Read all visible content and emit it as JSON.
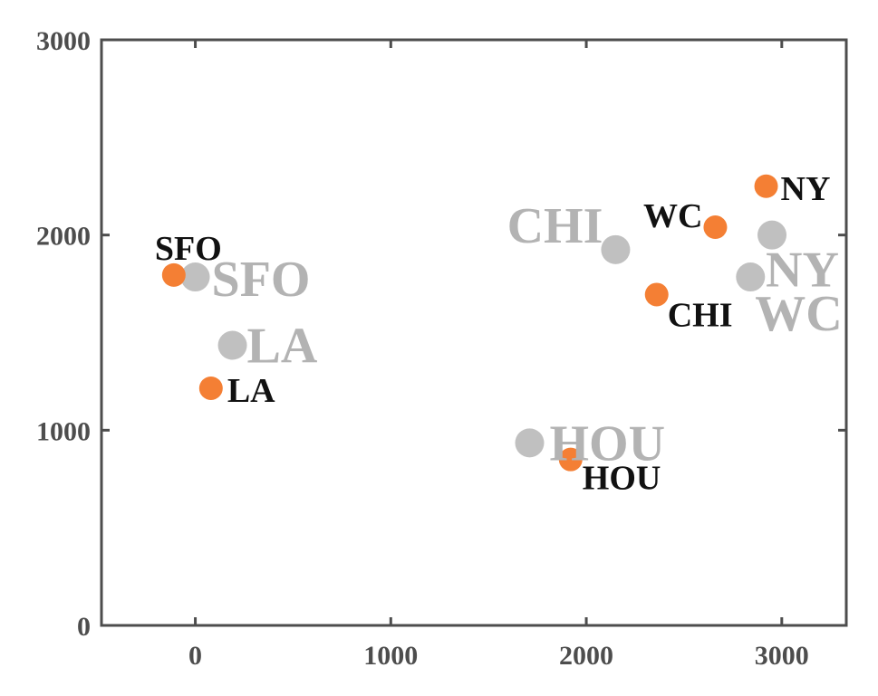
{
  "colors": {
    "orange": "#f47f34",
    "gray": "#c0c0c0",
    "gray_text": "#b3b3b3",
    "axis": "#4d4d4d",
    "black_text": "#111111",
    "background": "#ffffff"
  },
  "chart_data": {
    "type": "scatter",
    "xlim": [
      -480,
      3330
    ],
    "ylim": [
      0,
      3000
    ],
    "xticks": [
      0,
      1000,
      2000,
      3000
    ],
    "yticks": [
      0,
      1000,
      2000,
      3000
    ],
    "x_tick_labels": [
      "0",
      "1000",
      "2000",
      "3000"
    ],
    "y_tick_labels": [
      "0",
      "1000",
      "2000",
      "3000"
    ],
    "grid": false,
    "legend": "none",
    "series": [
      {
        "color": "#f47f34",
        "points": [
          {
            "label": "SFO",
            "x": -110,
            "y": 1795
          },
          {
            "label": "LA",
            "x": 80,
            "y": 1215
          },
          {
            "label": "HOU",
            "x": 1920,
            "y": 850
          },
          {
            "label": "CHI",
            "x": 2360,
            "y": 1695
          },
          {
            "label": "WC",
            "x": 2660,
            "y": 2040
          },
          {
            "label": "NY",
            "x": 2920,
            "y": 2250
          }
        ]
      },
      {
        "color": "#c0c0c0",
        "points": [
          {
            "label": "SFO",
            "x": 0,
            "y": 1785
          },
          {
            "label": "LA",
            "x": 190,
            "y": 1435
          },
          {
            "label": "HOU",
            "x": 1710,
            "y": 935
          },
          {
            "label": "CHI",
            "x": 2150,
            "y": 1925
          },
          {
            "label": "WC",
            "x": 2840,
            "y": 1785
          },
          {
            "label": "NY",
            "x": 2950,
            "y": 2000
          }
        ]
      }
    ]
  }
}
